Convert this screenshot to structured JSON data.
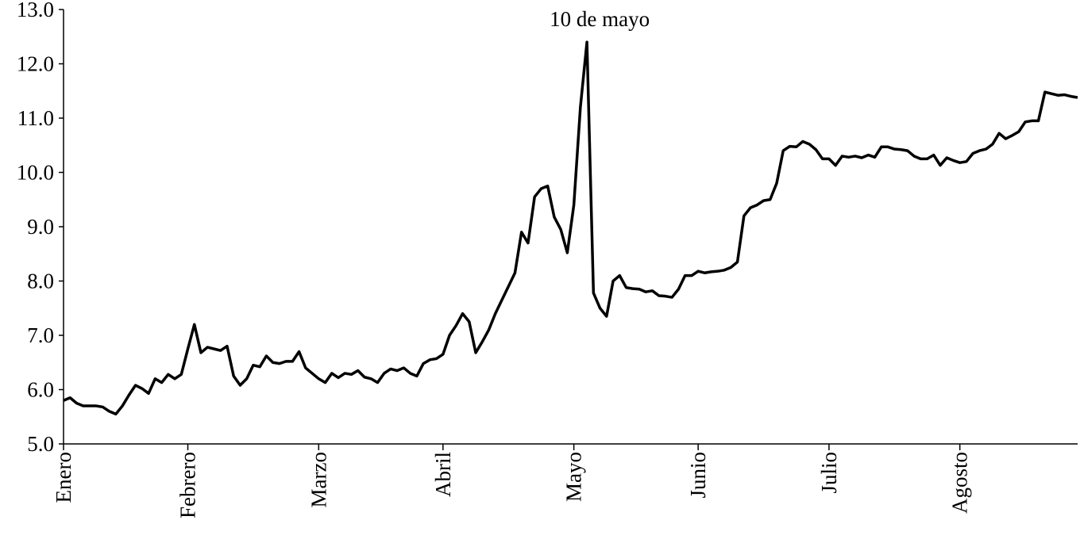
{
  "chart_data": {
    "type": "line",
    "annotation": "10 de mayo",
    "color": "#000000",
    "ylim": [
      5,
      13
    ],
    "yticks": [
      {
        "value": 5,
        "label": "5.0"
      },
      {
        "value": 6,
        "label": "6.0"
      },
      {
        "value": 7,
        "label": "7.0"
      },
      {
        "value": 8,
        "label": "8.0"
      },
      {
        "value": 9,
        "label": "9.0"
      },
      {
        "value": 10,
        "label": "10.0"
      },
      {
        "value": 11,
        "label": "11.0"
      },
      {
        "value": 12,
        "label": "12.0"
      },
      {
        "value": 13,
        "label": "13.0"
      }
    ],
    "categories": [
      "Enero",
      null,
      null,
      null,
      null,
      null,
      null,
      null,
      null,
      null,
      null,
      null,
      null,
      null,
      null,
      null,
      null,
      null,
      null,
      "Febrero",
      null,
      null,
      null,
      null,
      null,
      null,
      null,
      null,
      null,
      null,
      null,
      null,
      null,
      null,
      null,
      null,
      null,
      null,
      null,
      "Marzo",
      null,
      null,
      null,
      null,
      null,
      null,
      null,
      null,
      null,
      null,
      null,
      null,
      null,
      null,
      null,
      null,
      null,
      null,
      "Abril",
      null,
      null,
      null,
      null,
      null,
      null,
      null,
      null,
      null,
      null,
      null,
      null,
      null,
      null,
      null,
      null,
      null,
      null,
      null,
      "Mayo",
      null,
      null,
      null,
      null,
      null,
      null,
      null,
      null,
      null,
      null,
      null,
      null,
      null,
      null,
      null,
      null,
      null,
      null,
      "Junio",
      null,
      null,
      null,
      null,
      null,
      null,
      null,
      null,
      null,
      null,
      null,
      null,
      null,
      null,
      null,
      null,
      null,
      null,
      null,
      "Julio",
      null,
      null,
      null,
      null,
      null,
      null,
      null,
      null,
      null,
      null,
      null,
      null,
      null,
      null,
      null,
      null,
      null,
      null,
      null,
      "Agosto",
      null,
      null,
      null,
      null,
      null,
      null,
      null,
      null,
      null,
      null,
      null,
      null,
      null,
      null,
      null,
      null,
      null,
      null
    ],
    "values": [
      5.8,
      5.85,
      5.75,
      5.7,
      5.7,
      5.7,
      5.68,
      5.6,
      5.55,
      5.7,
      5.9,
      6.08,
      6.02,
      5.93,
      6.2,
      6.13,
      6.28,
      6.2,
      6.28,
      6.75,
      7.2,
      6.68,
      6.78,
      6.75,
      6.72,
      6.8,
      6.25,
      6.08,
      6.2,
      6.45,
      6.42,
      6.62,
      6.5,
      6.48,
      6.52,
      6.52,
      6.7,
      6.4,
      6.3,
      6.2,
      6.13,
      6.3,
      6.22,
      6.3,
      6.28,
      6.35,
      6.23,
      6.2,
      6.13,
      6.3,
      6.38,
      6.35,
      6.4,
      6.3,
      6.25,
      6.48,
      6.55,
      6.57,
      6.65,
      7.0,
      7.18,
      7.4,
      7.25,
      6.68,
      6.88,
      7.1,
      7.4,
      7.65,
      7.9,
      8.15,
      8.9,
      8.7,
      9.55,
      9.7,
      9.75,
      9.18,
      8.95,
      8.52,
      9.4,
      11.2,
      12.4,
      7.78,
      7.5,
      7.35,
      8.0,
      8.1,
      7.88,
      7.86,
      7.85,
      7.8,
      7.82,
      7.73,
      7.72,
      7.7,
      7.85,
      8.1,
      8.1,
      8.18,
      8.15,
      8.17,
      8.18,
      8.2,
      8.25,
      8.35,
      9.2,
      9.35,
      9.4,
      9.48,
      9.5,
      9.8,
      10.4,
      10.48,
      10.47,
      10.57,
      10.52,
      10.42,
      10.25,
      10.25,
      10.13,
      10.3,
      10.28,
      10.3,
      10.27,
      10.32,
      10.28,
      10.47,
      10.47,
      10.43,
      10.42,
      10.4,
      10.3,
      10.25,
      10.25,
      10.32,
      10.13,
      10.27,
      10.22,
      10.18,
      10.2,
      10.35,
      10.4,
      10.43,
      10.52,
      10.72,
      10.62,
      10.68,
      10.75,
      10.93,
      10.95,
      10.95,
      11.48,
      11.45,
      11.42,
      11.43,
      11.4,
      11.38
    ]
  }
}
